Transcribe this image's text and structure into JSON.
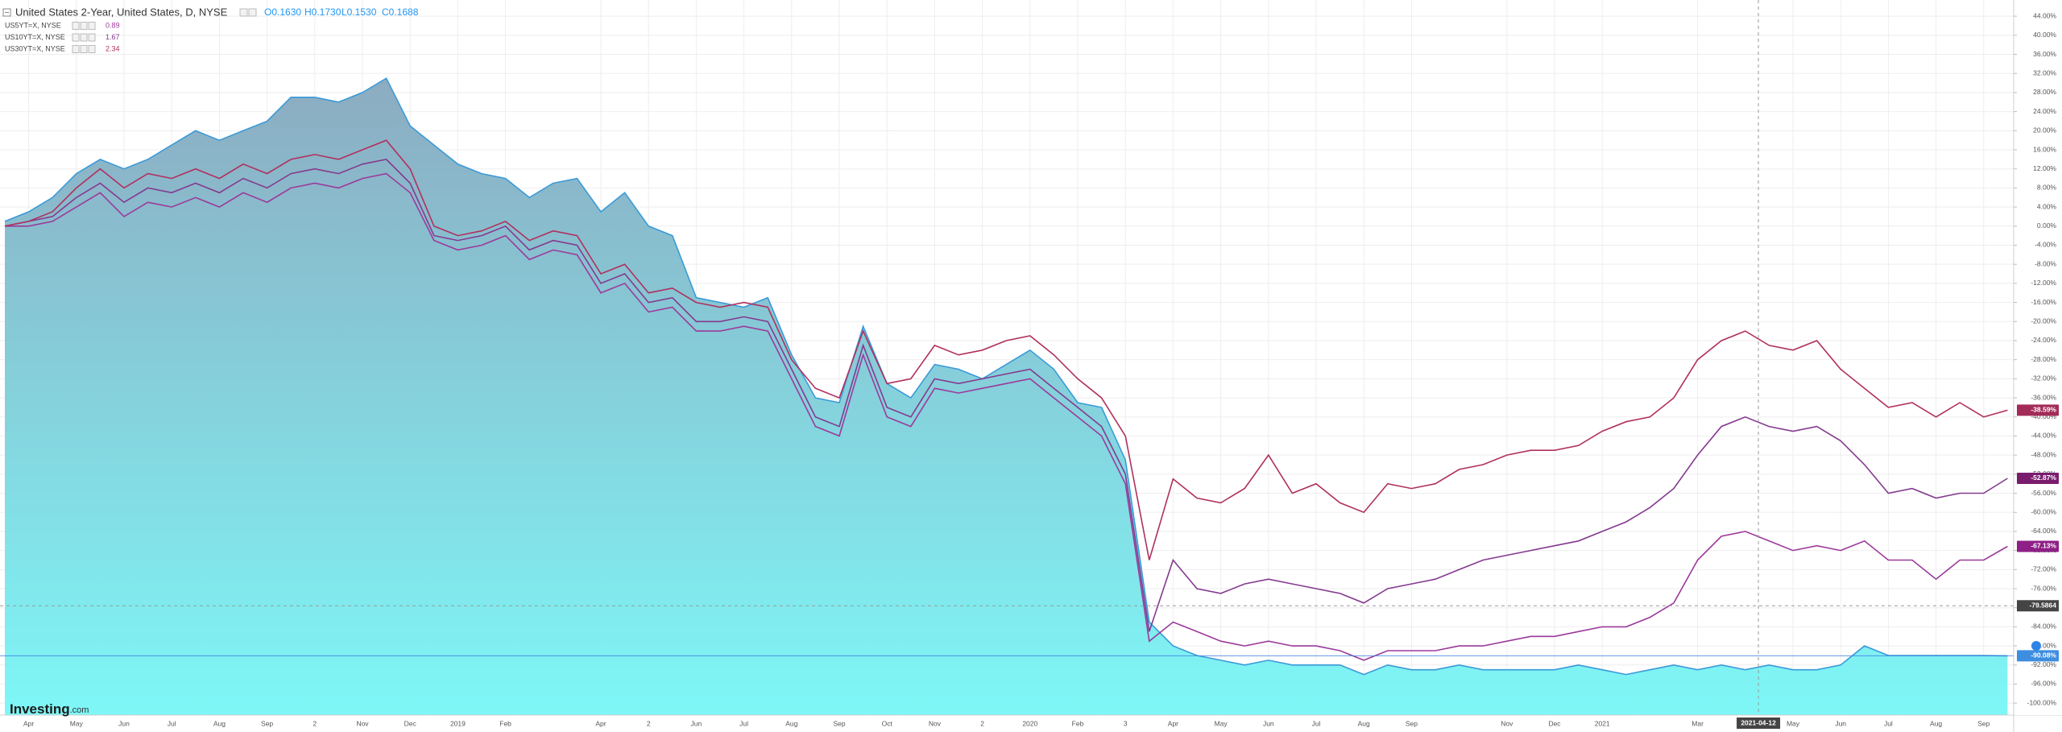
{
  "chart_data": {
    "type": "line",
    "title": "United States 2-Year, United States, D, NYSE",
    "ohlc": [
      "O0.1630",
      "H0.1730",
      "L0.1530",
      "C0.1688"
    ],
    "watermark": [
      "Investing",
      ".com"
    ],
    "categories": [
      null,
      "Apr",
      null,
      "May",
      null,
      "Jun",
      null,
      "Jul",
      null,
      "Aug",
      null,
      "Sep",
      null,
      "2",
      null,
      "Nov",
      null,
      "Dec",
      null,
      "2019",
      null,
      "Feb",
      null,
      null,
      null,
      "Apr",
      null,
      "2",
      null,
      "Jun",
      null,
      "Jul",
      null,
      "Aug",
      null,
      "Sep",
      null,
      "Oct",
      null,
      "Nov",
      null,
      "2",
      null,
      "2020",
      null,
      "Feb",
      null,
      "3",
      null,
      "Apr",
      null,
      "May",
      null,
      "Jun",
      null,
      "Jul",
      null,
      "Aug",
      null,
      "Sep",
      null,
      null,
      null,
      "Nov",
      null,
      "Dec",
      null,
      "2021",
      null,
      null,
      null,
      "Mar",
      null,
      null,
      null,
      "May",
      null,
      "Jun",
      null,
      "Jul",
      null,
      "Aug",
      null,
      "Sep",
      null
    ],
    "series": [
      {
        "name": "United States 2-Year",
        "style": "area",
        "color": "#3a9ad9",
        "fill_top": "#8ea2ba",
        "fill_bottom": "#7ef7f7",
        "last_value_label": "-90.08%",
        "label_color": "#3d8ee0",
        "values": [
          1,
          3,
          6,
          11,
          14,
          12,
          14,
          17,
          20,
          18,
          20,
          22,
          27,
          27,
          26,
          28,
          31,
          21,
          17,
          13,
          11,
          10,
          6,
          9,
          10,
          3,
          7,
          0,
          -2,
          -15,
          -16,
          -17,
          -15,
          -27,
          -36,
          -37,
          -21,
          -33,
          -36,
          -29,
          -30,
          -32,
          -29,
          -26,
          -30,
          -37,
          -38,
          -49,
          -83,
          -88,
          -90,
          -91,
          -92,
          -91,
          -92,
          -92,
          -92,
          -94,
          -92,
          -93,
          -93,
          -92,
          -93,
          -93,
          -93,
          -93,
          -92,
          -93,
          -94,
          -93,
          -92,
          -93,
          -92,
          -93,
          -92,
          -93,
          -93,
          -92,
          -88,
          -90,
          -90,
          -90,
          -90,
          -90,
          -90.08
        ]
      },
      {
        "name": "US5YT=X, NYSE",
        "style": "line",
        "color": "#9b3a9b",
        "legend_value": "0.89",
        "last_value_label": "-67.13%",
        "label_color": "#8e1f86",
        "values": [
          0,
          0,
          1,
          4,
          7,
          2,
          5,
          4,
          6,
          4,
          7,
          5,
          8,
          9,
          8,
          10,
          11,
          7,
          -3,
          -5,
          -4,
          -2,
          -7,
          -5,
          -6,
          -14,
          -12,
          -18,
          -17,
          -22,
          -22,
          -21,
          -22,
          -32,
          -42,
          -44,
          -27,
          -40,
          -42,
          -34,
          -35,
          -34,
          -33,
          -32,
          -36,
          -40,
          -44,
          -54,
          -87,
          -83,
          -85,
          -87,
          -88,
          -87,
          -88,
          -88,
          -89,
          -91,
          -89,
          -89,
          -89,
          -88,
          -88,
          -87,
          -86,
          -86,
          -85,
          -84,
          -84,
          -82,
          -79,
          -70,
          -65,
          -64,
          -66,
          -68,
          -67,
          -68,
          -66,
          -70,
          -70,
          -74,
          -70,
          -70,
          -67.13
        ]
      },
      {
        "name": "US10YT=X, NYSE",
        "style": "line",
        "color": "#843a8f",
        "legend_value": "1.67",
        "last_value_label": "-52.87%",
        "label_color": "#7a1c6e",
        "values": [
          0,
          1,
          2,
          6,
          9,
          5,
          8,
          7,
          9,
          7,
          10,
          8,
          11,
          12,
          11,
          13,
          14,
          9,
          -2,
          -3,
          -2,
          0,
          -5,
          -3,
          -4,
          -12,
          -10,
          -16,
          -15,
          -20,
          -20,
          -19,
          -20,
          -30,
          -40,
          -42,
          -25,
          -38,
          -40,
          -32,
          -33,
          -32,
          -31,
          -30,
          -34,
          -38,
          -42,
          -52,
          -85,
          -70,
          -76,
          -77,
          -75,
          -74,
          -75,
          -76,
          -77,
          -79,
          -76,
          -75,
          -74,
          -72,
          -70,
          -69,
          -68,
          -67,
          -66,
          -64,
          -62,
          -59,
          -55,
          -48,
          -42,
          -40,
          -42,
          -43,
          -42,
          -45,
          -50,
          -56,
          -55,
          -57,
          -56,
          -56,
          -52.87
        ]
      },
      {
        "name": "US30YT=X, NYSE",
        "style": "line",
        "color": "#b0305f",
        "legend_value": "2.34",
        "last_value_label": "-38.59%",
        "label_color": "#a32b57",
        "values": [
          0,
          1,
          3,
          8,
          12,
          8,
          11,
          10,
          12,
          10,
          13,
          11,
          14,
          15,
          14,
          16,
          18,
          12,
          0,
          -2,
          -1,
          1,
          -3,
          -1,
          -2,
          -10,
          -8,
          -14,
          -13,
          -16,
          -17,
          -16,
          -17,
          -28,
          -34,
          -36,
          -22,
          -33,
          -32,
          -25,
          -27,
          -26,
          -24,
          -23,
          -27,
          -32,
          -36,
          -44,
          -70,
          -53,
          -57,
          -58,
          -55,
          -48,
          -56,
          -54,
          -58,
          -60,
          -54,
          -55,
          -54,
          -51,
          -50,
          -48,
          -47,
          -47,
          -46,
          -43,
          -41,
          -40,
          -36,
          -28,
          -24,
          -22,
          -25,
          -26,
          -24,
          -30,
          -34,
          -38,
          -37,
          -40,
          -37,
          -40,
          -38.59
        ]
      }
    ],
    "crosshair": {
      "x_label": "2021-04-12",
      "y_value": -79.5864
    },
    "ylim": [
      -102.5,
      47.4
    ],
    "yticks": [
      {
        "value": 44,
        "label": "44.00%"
      },
      {
        "value": 40,
        "label": "40.00%"
      },
      {
        "value": 36,
        "label": "36.00%"
      },
      {
        "value": 32,
        "label": "32.00%"
      },
      {
        "value": 28,
        "label": "28.00%"
      },
      {
        "value": 24,
        "label": "24.00%"
      },
      {
        "value": 20,
        "label": "20.00%"
      },
      {
        "value": 16,
        "label": "16.00%"
      },
      {
        "value": 12,
        "label": "12.00%"
      },
      {
        "value": 8,
        "label": "8.00%"
      },
      {
        "value": 4,
        "label": "4.00%"
      },
      {
        "value": 0,
        "label": "0.00%"
      },
      {
        "value": -4,
        "label": "-4.00%"
      },
      {
        "value": -8,
        "label": "-8.00%"
      },
      {
        "value": -12,
        "label": "-12.00%"
      },
      {
        "value": -16,
        "label": "-16.00%"
      },
      {
        "value": -20,
        "label": "-20.00%"
      },
      {
        "value": -24,
        "label": "-24.00%"
      },
      {
        "value": -28,
        "label": "-28.00%"
      },
      {
        "value": -32,
        "label": "-32.00%"
      },
      {
        "value": -36,
        "label": "-36.00%"
      },
      {
        "value": -40,
        "label": "-40.00%"
      },
      {
        "value": -44,
        "label": "-44.00%"
      },
      {
        "value": -48,
        "label": "-48.00%"
      },
      {
        "value": -52,
        "label": "-52.00%"
      },
      {
        "value": -56,
        "label": "-56.00%"
      },
      {
        "value": -60,
        "label": "-60.00%"
      },
      {
        "value": -64,
        "label": "-64.00%"
      },
      {
        "value": -68,
        "label": "-68.00%"
      },
      {
        "value": -72,
        "label": "-72.00%"
      },
      {
        "value": -76,
        "label": "-76.00%"
      },
      {
        "value": -80,
        "label": "-80.00%"
      },
      {
        "value": -84,
        "label": "-84.00%"
      },
      {
        "value": -88,
        "label": "-88.00%"
      },
      {
        "value": -92,
        "label": "-92.00%"
      },
      {
        "value": -96,
        "label": "-96.00%"
      },
      {
        "value": -100,
        "label": "-100.00%"
      }
    ],
    "grid": true
  }
}
